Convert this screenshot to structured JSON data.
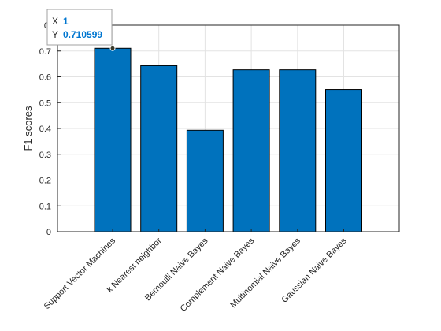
{
  "chart_data": {
    "type": "bar",
    "categories": [
      "Support Vector Machines",
      "k Nearest neighbor",
      "Bernoulli Naive Bayes",
      "Complement Naive Bayes",
      "Multinomial Naive Bayes",
      "Gaussian Naive Bayes"
    ],
    "values": [
      0.710599,
      0.643,
      0.393,
      0.627,
      0.627,
      0.551
    ],
    "title": "",
    "xlabel": "",
    "ylabel": "F1 scores",
    "ylim": [
      0,
      0.8
    ],
    "yticks": [
      "0",
      "0.1",
      "0.2",
      "0.3",
      "0.4",
      "0.5",
      "0.6",
      "0.7"
    ],
    "grid": true,
    "bar_color": "#0072bd",
    "bar_edge_color": "#000000",
    "datatip": {
      "x_label": "X",
      "x_value": "1",
      "y_label": "Y",
      "y_value": "0.710599",
      "top_tick_partial": "0."
    }
  }
}
